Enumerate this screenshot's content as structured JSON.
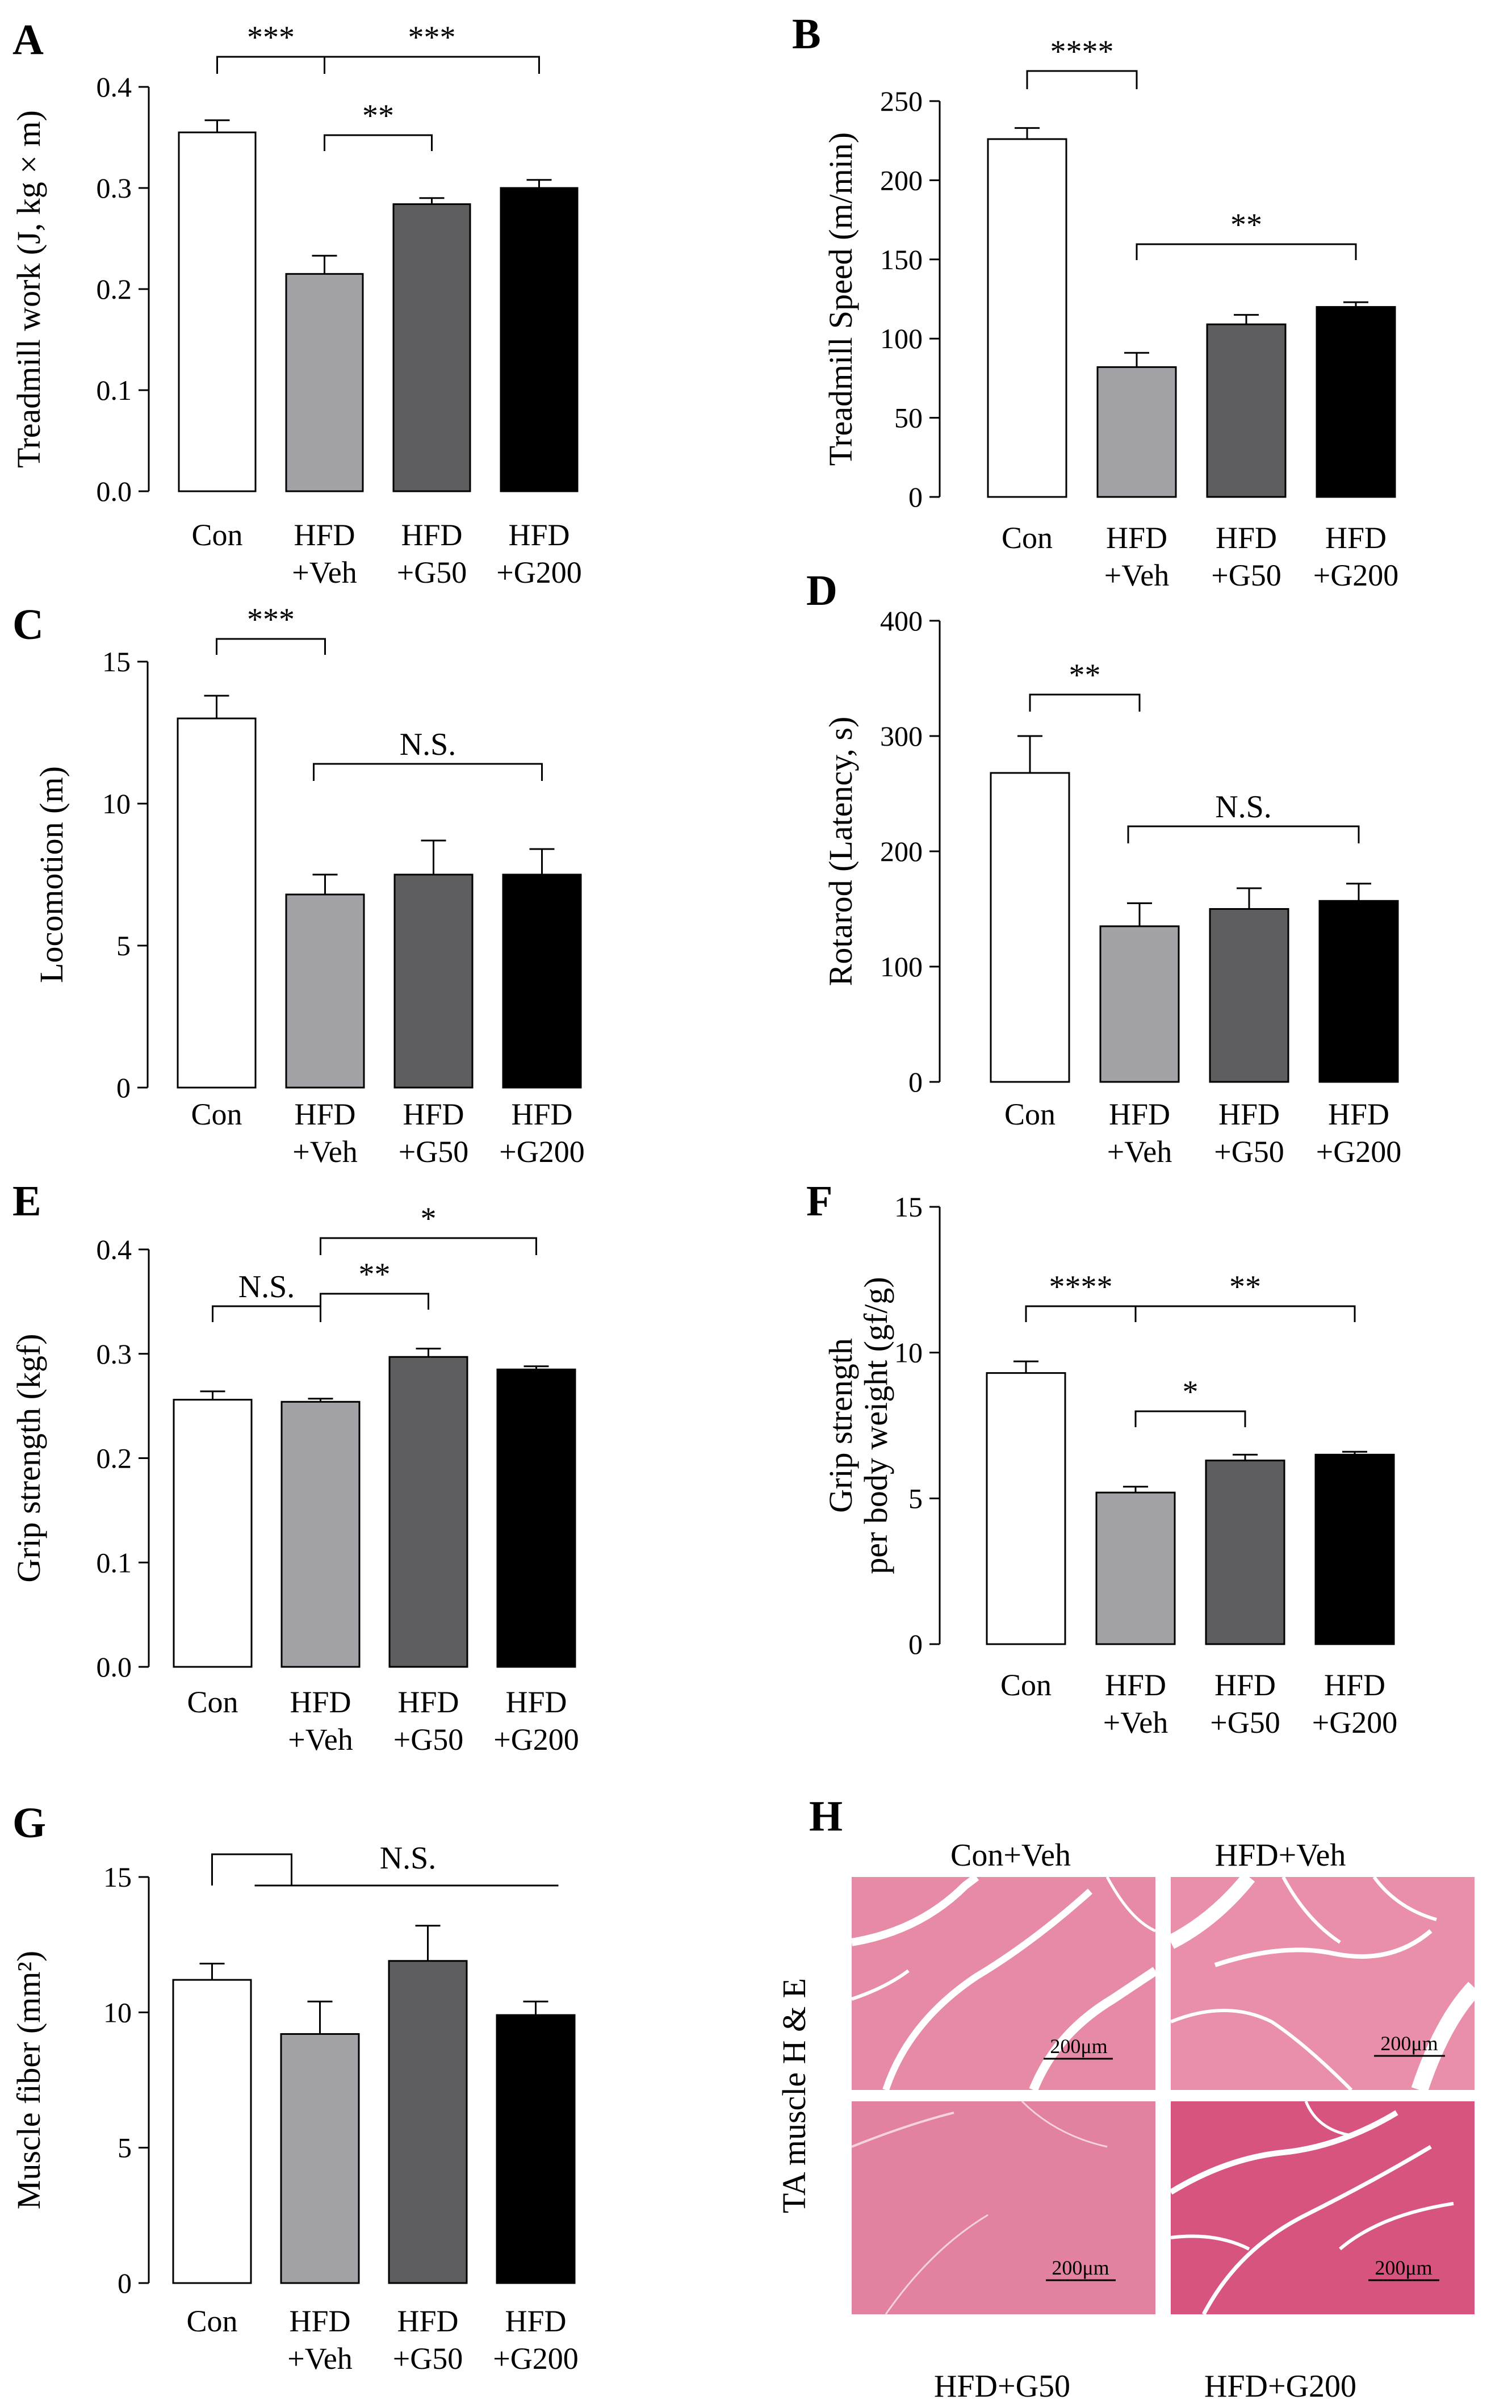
{
  "colors": {
    "Con": "#ffffff",
    "HFD+Veh": "#a3a3a7",
    "HFD+G50": "#5e5e60",
    "HFD+G200": "#000000",
    "tissue_pink": "#e68aa6",
    "tissue_dark_pink": "#d6547e"
  },
  "chart_data": [
    {
      "panel": "A",
      "type": "bar",
      "ylabel": "Treadmill work (J, kg × m)",
      "ylim": [
        0,
        0.4
      ],
      "yticks": [
        "0.0",
        "0.1",
        "0.2",
        "0.3",
        "0.4"
      ],
      "categories": [
        [
          "Con"
        ],
        [
          "HFD",
          "+Veh"
        ],
        [
          "HFD",
          "+G50"
        ],
        [
          "HFD",
          "+G200"
        ]
      ],
      "values": [
        0.355,
        0.215,
        0.284,
        0.3
      ],
      "errors": [
        0.012,
        0.018,
        0.006,
        0.008
      ],
      "brackets": [
        {
          "from": 0,
          "to": 1,
          "label": "***"
        },
        {
          "from": 1,
          "to": 3,
          "label": "***"
        },
        {
          "from": 1,
          "to": 2,
          "label": "**"
        }
      ]
    },
    {
      "panel": "B",
      "type": "bar",
      "ylabel": "Treadmill Speed (m/min)",
      "ylim": [
        0,
        250
      ],
      "yticks": [
        "0",
        "50",
        "100",
        "150",
        "200",
        "250"
      ],
      "categories": [
        [
          "Con"
        ],
        [
          "HFD",
          "+Veh"
        ],
        [
          "HFD",
          "+G50"
        ],
        [
          "HFD",
          "+G200"
        ]
      ],
      "values": [
        226,
        82,
        109,
        120
      ],
      "errors": [
        7,
        9,
        6,
        3
      ],
      "brackets": [
        {
          "from": 0,
          "to": 1,
          "label": "****"
        },
        {
          "from": 1,
          "to": 3,
          "label": "**"
        }
      ]
    },
    {
      "panel": "C",
      "type": "bar",
      "ylabel": "Locomotion (m)",
      "ylim": [
        0,
        15
      ],
      "yticks": [
        "0",
        "5",
        "10",
        "15"
      ],
      "categories": [
        [
          "Con"
        ],
        [
          "HFD",
          "+Veh"
        ],
        [
          "HFD",
          "+G50"
        ],
        [
          "HFD",
          "+G200"
        ]
      ],
      "values": [
        13.0,
        6.8,
        7.5,
        7.5
      ],
      "errors": [
        0.8,
        0.7,
        1.2,
        0.9
      ],
      "brackets": [
        {
          "from": 0,
          "to": 1,
          "label": "***"
        },
        {
          "from": 1,
          "to": 3,
          "label": "N.S.",
          "flat": true
        }
      ]
    },
    {
      "panel": "D",
      "type": "bar",
      "ylabel": "Rotarod (Latency, s)",
      "ylim": [
        0,
        400
      ],
      "yticks": [
        "0",
        "100",
        "200",
        "300",
        "400"
      ],
      "categories": [
        [
          "Con"
        ],
        [
          "HFD",
          "+Veh"
        ],
        [
          "HFD",
          "+G50"
        ],
        [
          "HFD",
          "+G200"
        ]
      ],
      "values": [
        268,
        135,
        150,
        157
      ],
      "errors": [
        32,
        20,
        18,
        15
      ],
      "brackets": [
        {
          "from": 0,
          "to": 1,
          "label": "**"
        },
        {
          "from": 1,
          "to": 3,
          "label": "N.S.",
          "flat": true
        }
      ]
    },
    {
      "panel": "E",
      "type": "bar",
      "ylabel": "Grip strength (kgf)",
      "ylim": [
        0,
        0.4
      ],
      "yticks": [
        "0.0",
        "0.1",
        "0.2",
        "0.3",
        "0.4"
      ],
      "categories": [
        [
          "Con"
        ],
        [
          "HFD",
          "+Veh"
        ],
        [
          "HFD",
          "+G50"
        ],
        [
          "HFD",
          "+G200"
        ]
      ],
      "values": [
        0.256,
        0.254,
        0.297,
        0.285
      ],
      "errors": [
        0.008,
        0.003,
        0.008,
        0.003
      ],
      "brackets": [
        {
          "from": 0,
          "to": 1,
          "label": "N.S."
        },
        {
          "from": 1,
          "to": 3,
          "label": "*"
        },
        {
          "from": 1,
          "to": 2,
          "label": "**"
        }
      ]
    },
    {
      "panel": "F",
      "type": "bar",
      "ylabel": [
        "Grip strength",
        "per body weight (gf/g)"
      ],
      "ylim": [
        0,
        15
      ],
      "yticks": [
        "0",
        "5",
        "10",
        "15"
      ],
      "categories": [
        [
          "Con"
        ],
        [
          "HFD",
          "+Veh"
        ],
        [
          "HFD",
          "+G50"
        ],
        [
          "HFD",
          "+G200"
        ]
      ],
      "values": [
        9.3,
        5.2,
        6.3,
        6.5
      ],
      "errors": [
        0.4,
        0.2,
        0.2,
        0.1
      ],
      "brackets": [
        {
          "from": 0,
          "to": 1,
          "label": "****"
        },
        {
          "from": 1,
          "to": 3,
          "label": "**"
        },
        {
          "from": 1,
          "to": 2,
          "label": "*"
        }
      ]
    },
    {
      "panel": "G",
      "type": "bar",
      "ylabel": "Muscle fiber (mm²)",
      "ylim": [
        0,
        15
      ],
      "yticks": [
        "0",
        "5",
        "10",
        "15"
      ],
      "categories": [
        [
          "Con"
        ],
        [
          "HFD",
          "+Veh"
        ],
        [
          "HFD",
          "+G50"
        ],
        [
          "HFD",
          "+G200"
        ]
      ],
      "values": [
        11.2,
        9.2,
        11.9,
        9.9
      ],
      "errors": [
        0.6,
        1.2,
        1.3,
        0.5
      ],
      "brackets": [
        {
          "from": 0,
          "to": 3,
          "label": "N.S.",
          "style": "step"
        }
      ]
    }
  ],
  "histology": {
    "panel": "H",
    "side_label": "TA muscle H & E",
    "images": [
      {
        "title": "Con+Veh",
        "scale": "200μm"
      },
      {
        "title": "HFD+Veh",
        "scale": "200μm"
      },
      {
        "title": "HFD+G50",
        "scale": "200μm"
      },
      {
        "title": "HFD+G200",
        "scale": "200μm"
      }
    ]
  }
}
